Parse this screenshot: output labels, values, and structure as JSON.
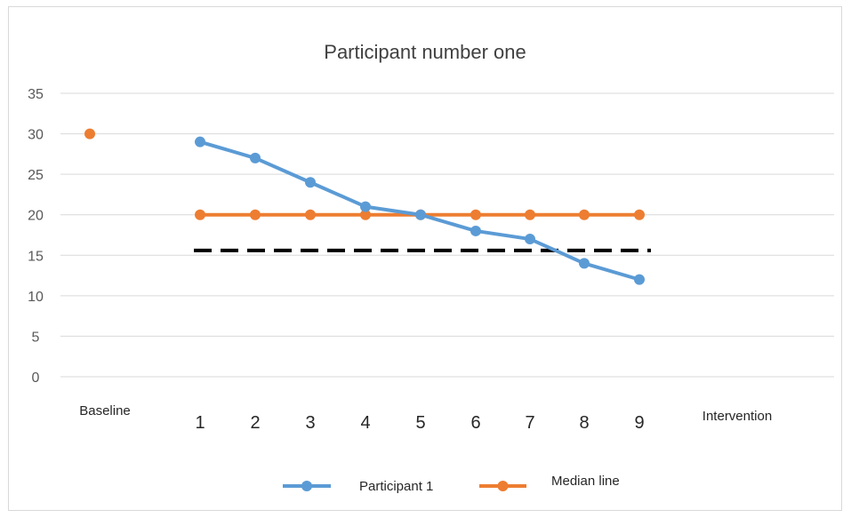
{
  "chart_data": {
    "type": "line",
    "title": "Participant number one",
    "ylim": [
      0,
      35
    ],
    "yticks": [
      "0",
      "5",
      "10",
      "15",
      "20",
      "25",
      "30",
      "35"
    ],
    "grid": true,
    "categories": [
      "1",
      "2",
      "3",
      "4",
      "5",
      "6",
      "7",
      "8",
      "9"
    ],
    "baseline_label": "Baseline",
    "intervention_label": "Intervention",
    "baseline_point": {
      "series": "Median line",
      "value": 30
    },
    "series": [
      {
        "name": "Participant 1",
        "color": "#5b9bd5",
        "values": [
          29,
          27,
          24,
          21,
          20,
          18,
          17,
          14,
          12
        ]
      },
      {
        "name": "Median line",
        "color": "#ed7d31",
        "values": [
          20,
          20,
          20,
          20,
          20,
          20,
          20,
          20,
          20
        ]
      }
    ],
    "reference_line": {
      "value": 15.6,
      "style": "dashed",
      "color": "#000000"
    },
    "legend_position": "bottom"
  }
}
